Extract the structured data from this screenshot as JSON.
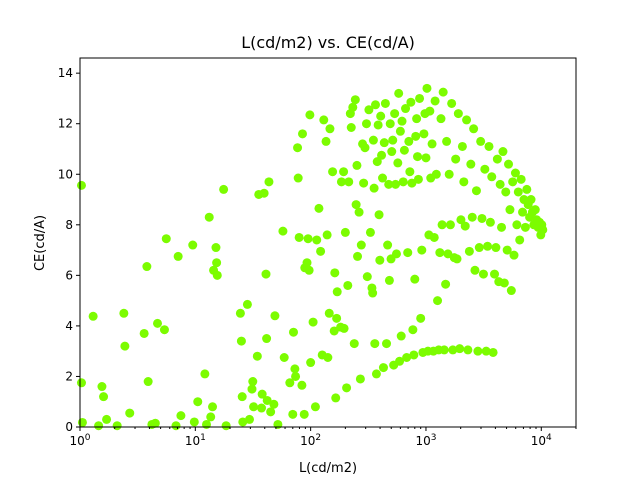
{
  "chart_data": {
    "type": "scatter",
    "title": "L(cd/m2) vs. CE(cd/A)",
    "xlabel": "L(cd/m2)",
    "ylabel": "CE(cd/A)",
    "x_scale": "log",
    "xlim": [
      1,
      20000
    ],
    "ylim": [
      0,
      14.6
    ],
    "x_ticks": [
      1,
      10,
      100,
      1000,
      10000
    ],
    "x_tick_labels": [
      {
        "base": "10",
        "exp": "0"
      },
      {
        "base": "10",
        "exp": "1"
      },
      {
        "base": "10",
        "exp": "2"
      },
      {
        "base": "10",
        "exp": "3"
      },
      {
        "base": "10",
        "exp": "4"
      }
    ],
    "y_ticks": [
      0,
      2,
      4,
      6,
      8,
      10,
      12,
      14
    ],
    "y_tick_labels": [
      "0",
      "2",
      "4",
      "6",
      "8",
      "10",
      "12",
      "14"
    ],
    "grid": false,
    "marker_color": "#7cfc00",
    "series": [
      {
        "points": [
          [
            1.03,
            9.56
          ],
          [
            1.03,
            1.75
          ],
          [
            1.05,
            0.18
          ],
          [
            1.3,
            4.38
          ],
          [
            1.45,
            0.05
          ],
          [
            1.55,
            1.6
          ],
          [
            1.6,
            1.2
          ],
          [
            1.7,
            0.3
          ],
          [
            2.1,
            0.05
          ],
          [
            2.4,
            4.5
          ],
          [
            2.45,
            3.2
          ],
          [
            2.7,
            0.55
          ],
          [
            3.6,
            3.7
          ],
          [
            3.8,
            6.35
          ],
          [
            3.9,
            1.8
          ],
          [
            4.2,
            0.1
          ],
          [
            4.5,
            0.15
          ],
          [
            4.7,
            4.1
          ],
          [
            5.4,
            3.85
          ],
          [
            5.6,
            7.45
          ],
          [
            6.8,
            0.05
          ],
          [
            7.1,
            6.75
          ],
          [
            7.5,
            0.45
          ],
          [
            9.5,
            7.2
          ],
          [
            9.8,
            0.2
          ],
          [
            10.5,
            1.0
          ],
          [
            12.1,
            2.1
          ],
          [
            12.5,
            0.1
          ],
          [
            13.2,
            8.3
          ],
          [
            13.6,
            0.4
          ],
          [
            14.1,
            0.8
          ],
          [
            14.4,
            6.2
          ],
          [
            15.1,
            7.1
          ],
          [
            15.3,
            6.5
          ],
          [
            15.5,
            6.0
          ],
          [
            17.6,
            9.4
          ],
          [
            18.5,
            0.05
          ],
          [
            24.6,
            4.5
          ],
          [
            25.1,
            3.4
          ],
          [
            25.5,
            1.2
          ],
          [
            25.8,
            0.2
          ],
          [
            28.3,
            4.85
          ],
          [
            29.5,
            0.3
          ],
          [
            31,
            1.5
          ],
          [
            31.5,
            1.8
          ],
          [
            32,
            0.8
          ],
          [
            34.5,
            2.8
          ],
          [
            35.5,
            9.2
          ],
          [
            37.5,
            0.75
          ],
          [
            38,
            1.3
          ],
          [
            39.5,
            9.25
          ],
          [
            41,
            6.05
          ],
          [
            41.5,
            3.5
          ],
          [
            42,
            1.05
          ],
          [
            43.5,
            9.7
          ],
          [
            45,
            0.6
          ],
          [
            48,
            0.9
          ],
          [
            49,
            4.4
          ],
          [
            52,
            0.1
          ],
          [
            57.5,
            7.75
          ],
          [
            59,
            2.75
          ],
          [
            66,
            1.75
          ],
          [
            70,
            0.5
          ],
          [
            71,
            3.75
          ],
          [
            73,
            2.3
          ],
          [
            74,
            2.0
          ],
          [
            77,
            11.05
          ],
          [
            78,
            9.85
          ],
          [
            79.5,
            7.5
          ],
          [
            84,
            1.65
          ],
          [
            85,
            11.6
          ],
          [
            88,
            0.5
          ],
          [
            89,
            6.3
          ],
          [
            93,
            6.5
          ],
          [
            95,
            7.45
          ],
          [
            97,
            6.2
          ],
          [
            98.5,
            12.35
          ],
          [
            100,
            2.55
          ],
          [
            105,
            4.15
          ],
          [
            110,
            0.8
          ],
          [
            113,
            7.4
          ],
          [
            118,
            8.65
          ],
          [
            122,
            6.95
          ],
          [
            126,
            2.85
          ],
          [
            130,
            12.15
          ],
          [
            136,
            11.3
          ],
          [
            139,
            7.6
          ],
          [
            141,
            2.75
          ],
          [
            145,
            4.5
          ],
          [
            147,
            11.8
          ],
          [
            155,
            10.1
          ],
          [
            160,
            3.8
          ],
          [
            162,
            6.1
          ],
          [
            165,
            1.15
          ],
          [
            168,
            4.3
          ],
          [
            170,
            5.35
          ],
          [
            182,
            3.95
          ],
          [
            185,
            9.7
          ],
          [
            193,
            10.1
          ],
          [
            195,
            3.9
          ],
          [
            200,
            7.7
          ],
          [
            205,
            1.55
          ],
          [
            210,
            5.6
          ],
          [
            214,
            9.7
          ],
          [
            221,
            12.4
          ],
          [
            225,
            11.85
          ],
          [
            232,
            12.65
          ],
          [
            239,
            3.3
          ],
          [
            244,
            12.95
          ],
          [
            248,
            8.8
          ],
          [
            252,
            10.35
          ],
          [
            255,
            6.75
          ],
          [
            263,
            8.5
          ],
          [
            270,
            1.9
          ],
          [
            275,
            7.2
          ],
          [
            282,
            11.2
          ],
          [
            288,
            9.65
          ],
          [
            296,
            11.05
          ],
          [
            305,
            12.0
          ],
          [
            310,
            5.95
          ],
          [
            320,
            12.55
          ],
          [
            330,
            7.7
          ],
          [
            340,
            5.5
          ],
          [
            345,
            5.3
          ],
          [
            350,
            11.35
          ],
          [
            355,
            9.45
          ],
          [
            360,
            3.3
          ],
          [
            365,
            12.75
          ],
          [
            372,
            2.1
          ],
          [
            378,
            10.5
          ],
          [
            385,
            11.95
          ],
          [
            392,
            8.4
          ],
          [
            398,
            6.6
          ],
          [
            405,
            12.3
          ],
          [
            412,
            10.75
          ],
          [
            420,
            9.85
          ],
          [
            428,
            2.35
          ],
          [
            435,
            11.25
          ],
          [
            445,
            12.8
          ],
          [
            455,
            3.3
          ],
          [
            465,
            7.2
          ],
          [
            475,
            9.6
          ],
          [
            482,
            5.8
          ],
          [
            490,
            12.0
          ],
          [
            498,
            6.65
          ],
          [
            505,
            10.9
          ],
          [
            515,
            11.35
          ],
          [
            525,
            2.45
          ],
          [
            535,
            12.4
          ],
          [
            545,
            9.6
          ],
          [
            555,
            6.85
          ],
          [
            570,
            10.45
          ],
          [
            580,
            13.2
          ],
          [
            590,
            2.6
          ],
          [
            600,
            11.7
          ],
          [
            610,
            3.6
          ],
          [
            620,
            12.1
          ],
          [
            635,
            9.7
          ],
          [
            650,
            10.95
          ],
          [
            665,
            12.6
          ],
          [
            680,
            2.75
          ],
          [
            695,
            6.9
          ],
          [
            710,
            11.3
          ],
          [
            725,
            10.1
          ],
          [
            740,
            12.85
          ],
          [
            755,
            9.65
          ],
          [
            770,
            3.85
          ],
          [
            785,
            2.85
          ],
          [
            800,
            5.85
          ],
          [
            815,
            11.5
          ],
          [
            830,
            12.2
          ],
          [
            845,
            10.7
          ],
          [
            860,
            9.8
          ],
          [
            880,
            13.0
          ],
          [
            900,
            4.3
          ],
          [
            920,
            7.0
          ],
          [
            940,
            2.95
          ],
          [
            960,
            11.6
          ],
          [
            980,
            12.4
          ],
          [
            1000,
            10.65
          ],
          [
            1020,
            13.4
          ],
          [
            1040,
            3.0
          ],
          [
            1060,
            7.6
          ],
          [
            1080,
            12.5
          ],
          [
            1100,
            9.85
          ],
          [
            1130,
            11.2
          ],
          [
            1160,
            3.0
          ],
          [
            1180,
            7.5
          ],
          [
            1200,
            12.9
          ],
          [
            1230,
            10.0
          ],
          [
            1260,
            5.0
          ],
          [
            1290,
            3.05
          ],
          [
            1320,
            6.9
          ],
          [
            1350,
            12.2
          ],
          [
            1380,
            8.0
          ],
          [
            1410,
            13.25
          ],
          [
            1440,
            3.05
          ],
          [
            1480,
            5.65
          ],
          [
            1510,
            11.3
          ],
          [
            1550,
            6.85
          ],
          [
            1590,
            10.0
          ],
          [
            1630,
            8.0
          ],
          [
            1670,
            12.8
          ],
          [
            1710,
            3.05
          ],
          [
            1760,
            6.7
          ],
          [
            1810,
            10.6
          ],
          [
            1860,
            6.65
          ],
          [
            1910,
            12.4
          ],
          [
            1960,
            3.1
          ],
          [
            2010,
            8.2
          ],
          [
            2070,
            11.1
          ],
          [
            2130,
            9.7
          ],
          [
            2190,
            7.95
          ],
          [
            2250,
            12.15
          ],
          [
            2310,
            3.05
          ],
          [
            2380,
            6.95
          ],
          [
            2450,
            10.4
          ],
          [
            2520,
            8.3
          ],
          [
            2590,
            11.8
          ],
          [
            2660,
            6.2
          ],
          [
            2740,
            9.35
          ],
          [
            2820,
            3.0
          ],
          [
            2900,
            7.1
          ],
          [
            2980,
            11.3
          ],
          [
            3060,
            8.25
          ],
          [
            3150,
            6.05
          ],
          [
            3240,
            10.2
          ],
          [
            3330,
            3.0
          ],
          [
            3420,
            7.15
          ],
          [
            3520,
            11.1
          ],
          [
            3620,
            8.1
          ],
          [
            3720,
            9.9
          ],
          [
            3820,
            2.95
          ],
          [
            3930,
            6.05
          ],
          [
            4040,
            7.1
          ],
          [
            4160,
            10.6
          ],
          [
            4280,
            5.75
          ],
          [
            4400,
            9.6
          ],
          [
            4520,
            7.9
          ],
          [
            4650,
            10.9
          ],
          [
            4780,
            5.7
          ],
          [
            4920,
            9.3
          ],
          [
            5060,
            7.0
          ],
          [
            5200,
            10.4
          ],
          [
            5350,
            8.6
          ],
          [
            5500,
            5.4
          ],
          [
            5650,
            9.7
          ],
          [
            5800,
            6.8
          ],
          [
            5970,
            10.05
          ],
          [
            6140,
            8.0
          ],
          [
            6320,
            9.3
          ],
          [
            6500,
            7.4
          ],
          [
            6690,
            9.8
          ],
          [
            6880,
            8.5
          ],
          [
            7080,
            9.0
          ],
          [
            7280,
            7.9
          ],
          [
            7490,
            9.4
          ],
          [
            7700,
            8.8
          ],
          [
            7920,
            8.3
          ],
          [
            8150,
            9.0
          ],
          [
            8380,
            8.5
          ],
          [
            8620,
            8.0
          ],
          [
            8870,
            8.6
          ],
          [
            9120,
            8.2
          ],
          [
            9380,
            7.9
          ],
          [
            9650,
            8.1
          ],
          [
            9900,
            7.6
          ],
          [
            10100,
            8.0
          ],
          [
            10300,
            7.8
          ]
        ]
      }
    ]
  }
}
